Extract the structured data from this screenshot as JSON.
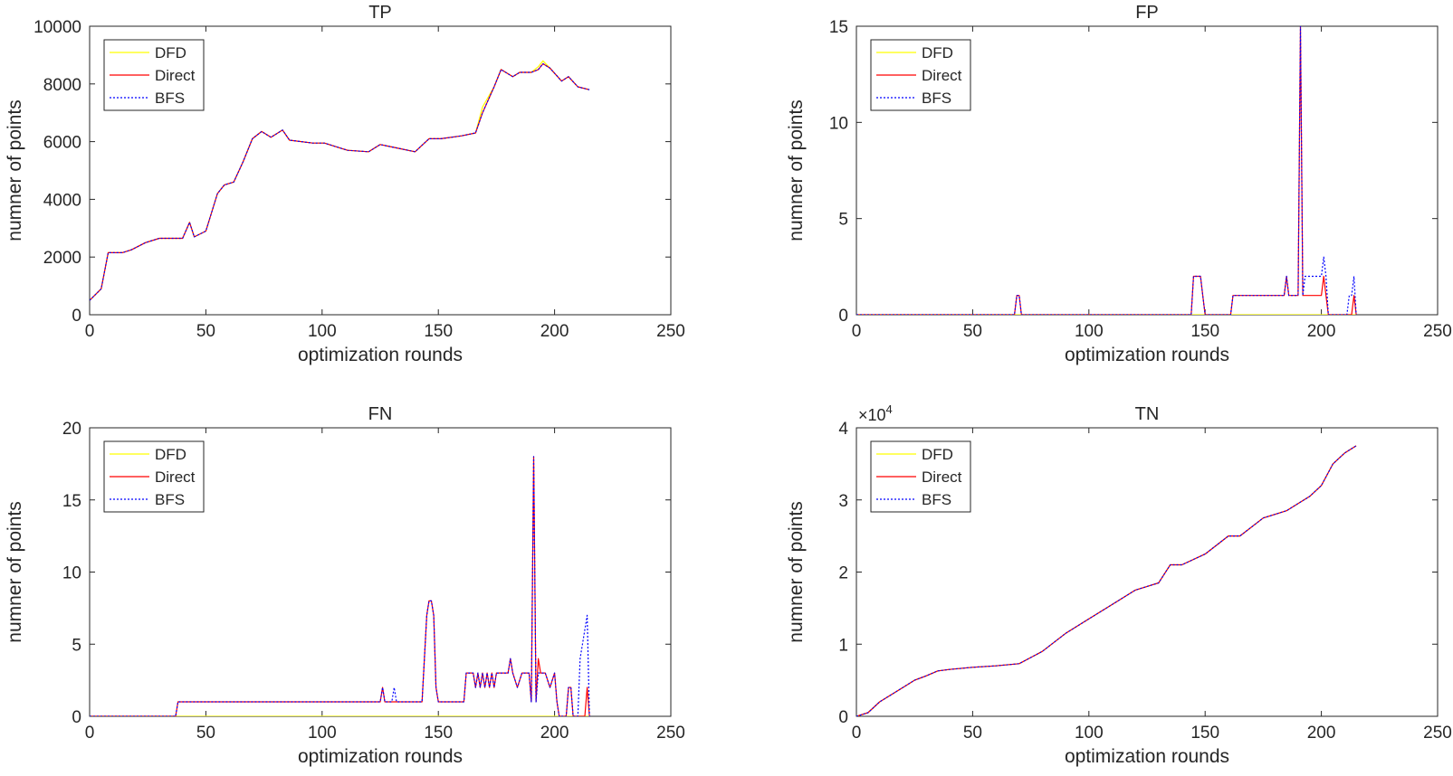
{
  "chart_data": [
    {
      "type": "line",
      "title": "TP",
      "xlabel": "optimization rounds",
      "ylabel": "numner of points",
      "xlim": [
        0,
        250
      ],
      "ylim": [
        0,
        10000
      ],
      "xticks": [
        0,
        50,
        100,
        150,
        200,
        250
      ],
      "yticks": [
        0,
        2000,
        4000,
        6000,
        8000,
        10000
      ],
      "x_multiplier": "",
      "legend": [
        "DFD",
        "Direct",
        "BFS"
      ],
      "legend_position": "top-left",
      "series": [
        {
          "name": "DFD",
          "color": "#ffff00",
          "style": "solid",
          "x": [
            0,
            5,
            8,
            14,
            18,
            24,
            30,
            35,
            40,
            43,
            45,
            50,
            55,
            58,
            62,
            66,
            70,
            74,
            78,
            83,
            86,
            96,
            101,
            111,
            120,
            125,
            131,
            140,
            146,
            151,
            160,
            166,
            169,
            174,
            177,
            182,
            185,
            190,
            193,
            195,
            198,
            203,
            206,
            210,
            215
          ],
          "y": [
            500,
            900,
            2150,
            2150,
            2250,
            2500,
            2650,
            2650,
            2650,
            3200,
            2700,
            2900,
            4200,
            4500,
            4600,
            5300,
            6100,
            6350,
            6150,
            6400,
            6050,
            5950,
            5950,
            5700,
            5650,
            5900,
            5800,
            5650,
            6100,
            6100,
            6200,
            6300,
            7200,
            7900,
            8500,
            8250,
            8400,
            8400,
            8600,
            8800,
            8550,
            8100,
            8250,
            7900,
            7800
          ]
        },
        {
          "name": "Direct",
          "color": "#ff0000",
          "style": "solid",
          "x": [
            0,
            5,
            8,
            14,
            18,
            24,
            30,
            35,
            40,
            43,
            45,
            50,
            55,
            58,
            62,
            66,
            70,
            74,
            78,
            83,
            86,
            96,
            101,
            111,
            120,
            125,
            131,
            140,
            146,
            151,
            160,
            166,
            169,
            174,
            177,
            182,
            185,
            190,
            193,
            195,
            198,
            203,
            206,
            210,
            215
          ],
          "y": [
            500,
            900,
            2150,
            2150,
            2250,
            2500,
            2650,
            2650,
            2650,
            3200,
            2700,
            2900,
            4200,
            4500,
            4600,
            5300,
            6100,
            6350,
            6150,
            6400,
            6050,
            5950,
            5950,
            5700,
            5650,
            5900,
            5800,
            5650,
            6100,
            6100,
            6200,
            6300,
            7000,
            7900,
            8500,
            8250,
            8400,
            8400,
            8500,
            8700,
            8550,
            8100,
            8250,
            7900,
            7800
          ]
        },
        {
          "name": "BFS",
          "color": "#0000ff",
          "style": "dotted",
          "x": [
            0,
            5,
            8,
            14,
            18,
            24,
            30,
            35,
            40,
            43,
            45,
            50,
            55,
            58,
            62,
            66,
            70,
            74,
            78,
            83,
            86,
            96,
            101,
            111,
            120,
            125,
            131,
            140,
            146,
            151,
            160,
            166,
            169,
            174,
            177,
            182,
            185,
            190,
            193,
            195,
            198,
            203,
            206,
            210,
            215
          ],
          "y": [
            500,
            900,
            2150,
            2150,
            2250,
            2500,
            2650,
            2650,
            2650,
            3200,
            2700,
            2900,
            4200,
            4500,
            4600,
            5300,
            6100,
            6350,
            6150,
            6400,
            6050,
            5950,
            5950,
            5700,
            5650,
            5900,
            5800,
            5650,
            6100,
            6100,
            6200,
            6300,
            7000,
            7900,
            8500,
            8250,
            8400,
            8400,
            8500,
            8700,
            8550,
            8100,
            8250,
            7900,
            7800
          ]
        }
      ]
    },
    {
      "type": "line",
      "title": "FP",
      "xlabel": "optimization rounds",
      "ylabel": "numner of points",
      "xlim": [
        0,
        250
      ],
      "ylim": [
        0,
        15
      ],
      "xticks": [
        0,
        50,
        100,
        150,
        200,
        250
      ],
      "yticks": [
        0,
        5,
        10,
        15
      ],
      "x_multiplier": "",
      "legend": [
        "DFD",
        "Direct",
        "BFS"
      ],
      "legend_position": "top-left",
      "series": [
        {
          "name": "DFD",
          "color": "#ffff00",
          "style": "solid",
          "x": [
            0,
            215
          ],
          "y": [
            0,
            0
          ]
        },
        {
          "name": "Direct",
          "color": "#ff0000",
          "style": "solid",
          "x": [
            0,
            68,
            69,
            70,
            71,
            144,
            145,
            148,
            149,
            150,
            161,
            162,
            184,
            185,
            186,
            190,
            191,
            192,
            200,
            201,
            202,
            203,
            212,
            213,
            214,
            215
          ],
          "y": [
            0,
            0,
            1,
            1,
            0,
            0,
            2,
            2,
            1,
            0,
            0,
            1,
            1,
            2,
            1,
            1,
            15,
            1,
            1,
            2,
            1,
            0,
            0,
            0,
            1,
            0
          ]
        },
        {
          "name": "BFS",
          "color": "#0000ff",
          "style": "dotted",
          "x": [
            0,
            68,
            69,
            70,
            71,
            144,
            145,
            148,
            149,
            150,
            161,
            162,
            184,
            185,
            186,
            190,
            191,
            192,
            193,
            200,
            201,
            202,
            203,
            211,
            212,
            213,
            214,
            215
          ],
          "y": [
            0,
            0,
            1,
            1,
            0,
            0,
            2,
            2,
            1,
            0,
            0,
            1,
            1,
            2,
            1,
            1,
            15,
            1,
            2,
            2,
            3,
            2,
            0,
            0,
            1,
            1,
            2,
            0
          ]
        }
      ]
    },
    {
      "type": "line",
      "title": "FN",
      "xlabel": "optimization rounds",
      "ylabel": "numner of points",
      "xlim": [
        0,
        250
      ],
      "ylim": [
        0,
        20
      ],
      "xticks": [
        0,
        50,
        100,
        150,
        200,
        250
      ],
      "yticks": [
        0,
        5,
        10,
        15,
        20
      ],
      "x_multiplier": "",
      "legend": [
        "DFD",
        "Direct",
        "BFS"
      ],
      "legend_position": "top-left",
      "series": [
        {
          "name": "DFD",
          "color": "#ffff00",
          "style": "solid",
          "x": [
            0,
            215
          ],
          "y": [
            0,
            0
          ]
        },
        {
          "name": "Direct",
          "color": "#ff0000",
          "style": "solid",
          "x": [
            0,
            37,
            38,
            125,
            126,
            127,
            143,
            145,
            146,
            147,
            148,
            149,
            150,
            161,
            162,
            165,
            166,
            167,
            168,
            169,
            170,
            171,
            172,
            173,
            174,
            175,
            176,
            180,
            181,
            182,
            184,
            186,
            187,
            189,
            190,
            191,
            192,
            193,
            194,
            196,
            198,
            200,
            201,
            202,
            205,
            206,
            207,
            208,
            212,
            213,
            214,
            215
          ],
          "y": [
            0,
            0,
            1,
            1,
            2,
            1,
            1,
            7,
            8,
            8,
            7,
            2,
            1,
            1,
            3,
            3,
            2,
            3,
            2,
            3,
            2,
            3,
            2,
            3,
            2,
            3,
            3,
            3,
            4,
            3,
            2,
            3,
            3,
            3,
            1,
            18,
            1,
            4,
            3,
            3,
            2,
            3,
            1,
            0,
            0,
            2,
            2,
            0,
            0,
            0,
            2,
            0
          ]
        },
        {
          "name": "BFS",
          "color": "#0000ff",
          "style": "dotted",
          "x": [
            0,
            37,
            38,
            125,
            126,
            127,
            130,
            131,
            132,
            143,
            145,
            146,
            147,
            148,
            149,
            150,
            161,
            162,
            165,
            166,
            167,
            168,
            169,
            170,
            171,
            172,
            173,
            174,
            175,
            176,
            180,
            181,
            182,
            184,
            186,
            187,
            189,
            190,
            191,
            192,
            193,
            194,
            196,
            198,
            200,
            201,
            202,
            205,
            206,
            207,
            208,
            210,
            211,
            212,
            213,
            214,
            215
          ],
          "y": [
            0,
            0,
            1,
            1,
            2,
            1,
            1,
            2,
            1,
            1,
            7,
            8,
            8,
            7,
            2,
            1,
            1,
            3,
            3,
            2,
            3,
            2,
            3,
            2,
            3,
            2,
            3,
            2,
            3,
            3,
            3,
            4,
            3,
            2,
            3,
            3,
            3,
            1,
            18,
            1,
            3,
            3,
            3,
            2,
            3,
            1,
            0,
            0,
            2,
            2,
            0,
            0,
            4,
            5,
            6,
            7,
            0
          ]
        }
      ]
    },
    {
      "type": "line",
      "title": "TN",
      "xlabel": "optimization rounds",
      "ylabel": "numner of points",
      "xlim": [
        0,
        250
      ],
      "ylim": [
        0,
        40000
      ],
      "xticks": [
        0,
        50,
        100,
        150,
        200,
        250
      ],
      "yticks": [
        0,
        10000,
        20000,
        30000,
        40000
      ],
      "ytick_labels": [
        "0",
        "1",
        "2",
        "3",
        "4"
      ],
      "y_multiplier": "×10",
      "y_multiplier_exp": "4",
      "legend": [
        "DFD",
        "Direct",
        "BFS"
      ],
      "legend_position": "top-left",
      "series": [
        {
          "name": "DFD",
          "color": "#ffff00",
          "style": "solid",
          "x": [
            0,
            5,
            10,
            15,
            20,
            25,
            30,
            35,
            40,
            50,
            60,
            70,
            80,
            90,
            100,
            110,
            120,
            130,
            135,
            140,
            150,
            160,
            165,
            175,
            185,
            190,
            195,
            200,
            205,
            210,
            215
          ],
          "y": [
            0,
            500,
            2000,
            3000,
            4000,
            5000,
            5600,
            6300,
            6500,
            6800,
            7000,
            7300,
            9000,
            11500,
            13500,
            15500,
            17500,
            18500,
            21000,
            21000,
            22500,
            25000,
            25000,
            27500,
            28500,
            29500,
            30500,
            32000,
            35000,
            36500,
            37500
          ]
        },
        {
          "name": "Direct",
          "color": "#ff0000",
          "style": "solid",
          "x": [
            0,
            5,
            10,
            15,
            20,
            25,
            30,
            35,
            40,
            50,
            60,
            70,
            80,
            90,
            100,
            110,
            120,
            130,
            135,
            140,
            150,
            160,
            165,
            175,
            185,
            190,
            195,
            200,
            205,
            210,
            215
          ],
          "y": [
            0,
            500,
            2000,
            3000,
            4000,
            5000,
            5600,
            6300,
            6500,
            6800,
            7000,
            7300,
            9000,
            11500,
            13500,
            15500,
            17500,
            18500,
            21000,
            21000,
            22500,
            25000,
            25000,
            27500,
            28500,
            29500,
            30500,
            32000,
            35000,
            36500,
            37500
          ]
        },
        {
          "name": "BFS",
          "color": "#0000ff",
          "style": "dotted",
          "x": [
            0,
            5,
            10,
            15,
            20,
            25,
            30,
            35,
            40,
            50,
            60,
            70,
            80,
            90,
            100,
            110,
            120,
            130,
            135,
            140,
            150,
            160,
            165,
            175,
            185,
            190,
            195,
            200,
            205,
            210,
            215
          ],
          "y": [
            0,
            500,
            2000,
            3000,
            4000,
            5000,
            5600,
            6300,
            6500,
            6800,
            7000,
            7300,
            9000,
            11500,
            13500,
            15500,
            17500,
            18500,
            21000,
            21000,
            22500,
            25000,
            25000,
            27500,
            28500,
            29500,
            30500,
            32000,
            35000,
            36500,
            37500
          ]
        }
      ]
    }
  ]
}
